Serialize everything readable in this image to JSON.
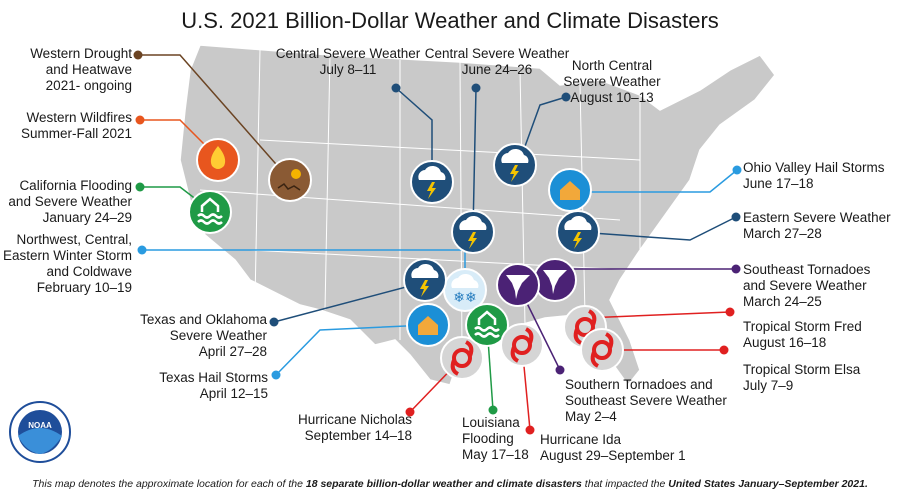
{
  "title": "U.S. 2021 Billion-Dollar Weather and Climate Disasters",
  "labels": [
    {
      "lines": [
        "Western Drought",
        "and Heatwave",
        "2021- ongoing"
      ]
    },
    {
      "lines": [
        "Western Wildfires",
        "Summer-Fall 2021"
      ]
    },
    {
      "lines": [
        "California Flooding",
        "and Severe Weather",
        "January 24–29"
      ]
    },
    {
      "lines": [
        "Northwest, Central,",
        "Eastern Winter Storm",
        "and Coldwave",
        "February 10–19"
      ]
    },
    {
      "lines": [
        "Texas and Oklahoma",
        "Severe Weather",
        "April 27–28"
      ]
    },
    {
      "lines": [
        "Texas Hail Storms",
        "April 12–15"
      ]
    },
    {
      "lines": [
        "Central Severe Weather",
        "July 8–11"
      ]
    },
    {
      "lines": [
        "Central Severe Weather",
        "June 24–26"
      ]
    },
    {
      "lines": [
        "North Central",
        "Severe Weather",
        "August 10–13"
      ]
    },
    {
      "lines": [
        "Ohio Valley Hail Storms",
        "June 17–18"
      ]
    },
    {
      "lines": [
        "Eastern Severe Weather",
        "March 27–28"
      ]
    },
    {
      "lines": [
        "Southeast Tornadoes",
        "and Severe Weather",
        "March 24–25"
      ]
    },
    {
      "lines": [
        "Tropical Storm Fred",
        "August 16–18"
      ]
    },
    {
      "lines": [
        "Tropical Storm Elsa",
        "July 7–9"
      ]
    },
    {
      "lines": [
        "Southern Tornadoes and",
        "Southeast Severe Weather",
        "May 2–4"
      ]
    },
    {
      "lines": [
        "Hurricane Nicholas",
        "September 14–18"
      ]
    },
    {
      "lines": [
        "Louisiana",
        "Flooding",
        "May 17–18"
      ]
    },
    {
      "lines": [
        "Hurricane Ida",
        "August 29–September 1"
      ]
    }
  ],
  "logo": "NOAA",
  "footer": {
    "part1": "This map denotes the approximate location for each of the ",
    "part2": "18 separate billion-dollar weather and climate disasters",
    "part3": " that impacted the ",
    "part4": "United States January–September 2021."
  }
}
